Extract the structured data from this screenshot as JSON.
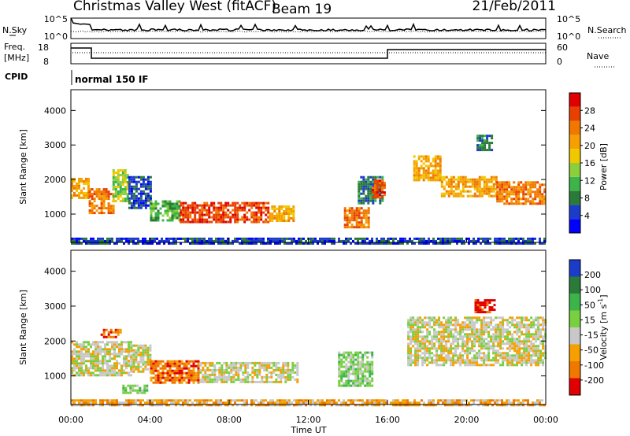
{
  "header": {
    "station": "Christmas Valley West (fitACF)",
    "beam": "Beam 19",
    "date": "21/Feb/2011"
  },
  "top_panels": {
    "noise_left_label": "N.Sky",
    "noise_right_label": "N.Search",
    "noise_left_ticks": [
      "10^5",
      "10^0"
    ],
    "noise_right_ticks": [
      "10^5",
      "10^0"
    ],
    "freq_label_line1": "Freq.",
    "freq_label_line2": "[MHz]",
    "freq_ticks": [
      "18",
      "8"
    ],
    "nave_label": "Nave",
    "nave_ticks": [
      "60",
      "0"
    ],
    "cpid_label": "CPID",
    "cpid_value": "normal 150 IF"
  },
  "time_axis": {
    "label": "Time UT",
    "ticks": [
      "00:00",
      "04:00",
      "08:00",
      "12:00",
      "16:00",
      "20:00",
      "00:00"
    ]
  },
  "chart_data": [
    {
      "type": "heatmap",
      "name": "power",
      "ylabel": "Slant Range [km]",
      "yticks": [
        "1000",
        "2000",
        "3000",
        "4000"
      ],
      "ylim": [
        180,
        4600
      ],
      "xlim_hours": [
        0,
        24
      ],
      "colorbar_label": "Power [dB]",
      "colorbar_ticks": [
        "28",
        "24",
        "20",
        "16",
        "12",
        "8",
        "4"
      ],
      "colors": [
        "#0000ff",
        "#1a3cc8",
        "#2a7a3a",
        "#3cb44a",
        "#8ccf3c",
        "#f0c800",
        "#f5a000",
        "#f07800",
        "#e84000",
        "#e00000"
      ],
      "echo_regions": [
        {
          "t0": 0.0,
          "t1": 0.9,
          "r0": 1450,
          "r1": 2050,
          "level": 6
        },
        {
          "t0": 0.9,
          "t1": 2.1,
          "r0": 1050,
          "r1": 1750,
          "level": 7
        },
        {
          "t0": 2.1,
          "t1": 2.9,
          "r0": 1400,
          "r1": 2300,
          "level": 4
        },
        {
          "t0": 2.9,
          "t1": 4.0,
          "r0": 1200,
          "r1": 2100,
          "level": 1
        },
        {
          "t0": 4.0,
          "t1": 5.5,
          "r0": 850,
          "r1": 1400,
          "level": 3
        },
        {
          "t0": 5.5,
          "t1": 10.0,
          "r0": 800,
          "r1": 1350,
          "level": 8
        },
        {
          "t0": 10.0,
          "t1": 11.3,
          "r0": 800,
          "r1": 1250,
          "level": 6
        },
        {
          "t0": 13.8,
          "t1": 15.0,
          "r0": 600,
          "r1": 1200,
          "level": 7
        },
        {
          "t0": 14.5,
          "t1": 15.7,
          "r0": 1300,
          "r1": 2100,
          "level": 2
        },
        {
          "t0": 15.2,
          "t1": 15.8,
          "r0": 1500,
          "r1": 2000,
          "level": 8
        },
        {
          "t0": 17.3,
          "t1": 18.7,
          "r0": 2000,
          "r1": 2700,
          "level": 6
        },
        {
          "t0": 18.7,
          "t1": 21.5,
          "r0": 1500,
          "r1": 2100,
          "level": 6
        },
        {
          "t0": 21.5,
          "t1": 24.0,
          "r0": 1300,
          "r1": 1950,
          "level": 7
        },
        {
          "t0": 20.5,
          "t1": 21.3,
          "r0": 2850,
          "r1": 3300,
          "level": 2
        },
        {
          "t0": 0.0,
          "t1": 24.0,
          "r0": 180,
          "r1": 320,
          "level": 1
        }
      ]
    },
    {
      "type": "heatmap",
      "name": "velocity",
      "ylabel": "Slant Range [km]",
      "yticks": [
        "1000",
        "2000",
        "3000",
        "4000"
      ],
      "ylim": [
        180,
        4600
      ],
      "xlim_hours": [
        0,
        24
      ],
      "colorbar_label_main": "Velocity [m s",
      "colorbar_label_sup": "-1",
      "colorbar_label_end": "]",
      "colorbar_ticks": [
        "200",
        "100",
        "50",
        "15",
        "-15",
        "-50",
        "-100",
        "-200"
      ],
      "colors": [
        "#e00000",
        "#f07800",
        "#f5a000",
        "#c8c8c8",
        "#78d040",
        "#3cb44a",
        "#2a7a3a",
        "#1a3cc8"
      ],
      "echo_regions": [
        {
          "t0": 0.0,
          "t1": 3.0,
          "r0": 1050,
          "r1": 2000,
          "level": 3
        },
        {
          "t0": 1.5,
          "t1": 2.5,
          "r0": 2100,
          "r1": 2350,
          "level": 1
        },
        {
          "t0": 3.0,
          "t1": 4.0,
          "r0": 1100,
          "r1": 1900,
          "level": 3
        },
        {
          "t0": 4.0,
          "t1": 6.5,
          "r0": 800,
          "r1": 1450,
          "level": 1
        },
        {
          "t0": 6.5,
          "t1": 11.5,
          "r0": 800,
          "r1": 1400,
          "level": 3
        },
        {
          "t0": 2.6,
          "t1": 3.8,
          "r0": 500,
          "r1": 750,
          "level": 4
        },
        {
          "t0": 13.5,
          "t1": 15.2,
          "r0": 700,
          "r1": 1700,
          "level": 4
        },
        {
          "t0": 17.0,
          "t1": 24.0,
          "r0": 1300,
          "r1": 2700,
          "level": 3
        },
        {
          "t0": 20.4,
          "t1": 21.4,
          "r0": 2850,
          "r1": 3200,
          "level": 0
        },
        {
          "t0": 0.0,
          "t1": 24.0,
          "r0": 180,
          "r1": 330,
          "level": 2
        }
      ]
    }
  ]
}
